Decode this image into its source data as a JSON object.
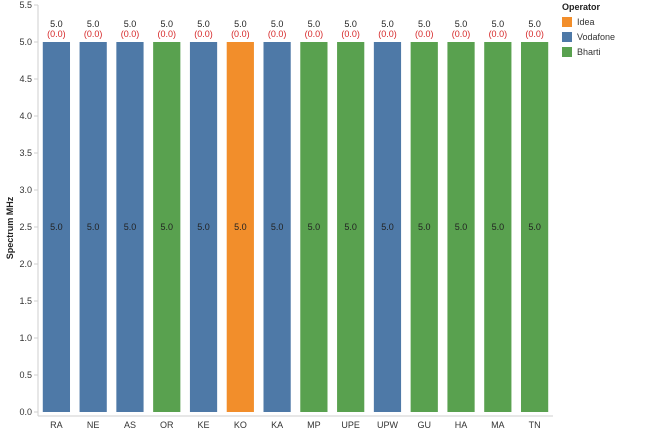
{
  "chart_data": {
    "type": "bar",
    "ylabel": "Spectrum MHz",
    "ylim": [
      0,
      5.5
    ],
    "yticks": [
      0.0,
      0.5,
      1.0,
      1.5,
      2.0,
      2.5,
      3.0,
      3.5,
      4.0,
      4.5,
      5.0,
      5.5
    ],
    "categories": [
      "RA",
      "NE",
      "AS",
      "OR",
      "KE",
      "KO",
      "KA",
      "MP",
      "UPE",
      "UPW",
      "GU",
      "HA",
      "MA",
      "TN"
    ],
    "values": [
      5.0,
      5.0,
      5.0,
      5.0,
      5.0,
      5.0,
      5.0,
      5.0,
      5.0,
      5.0,
      5.0,
      5.0,
      5.0,
      5.0
    ],
    "value_labels": [
      "5.0",
      "5.0",
      "5.0",
      "5.0",
      "5.0",
      "5.0",
      "5.0",
      "5.0",
      "5.0",
      "5.0",
      "5.0",
      "5.0",
      "5.0",
      "5.0"
    ],
    "change_labels": [
      "(0.0)",
      "(0.0)",
      "(0.0)",
      "(0.0)",
      "(0.0)",
      "(0.0)",
      "(0.0)",
      "(0.0)",
      "(0.0)",
      "(0.0)",
      "(0.0)",
      "(0.0)",
      "(0.0)",
      "(0.0)"
    ],
    "operators": [
      "Vodafone",
      "Vodafone",
      "Vodafone",
      "Bharti",
      "Vodafone",
      "Idea",
      "Vodafone",
      "Bharti",
      "Bharti",
      "Vodafone",
      "Bharti",
      "Bharti",
      "Bharti",
      "Bharti"
    ],
    "legend": {
      "title": "Operator",
      "placement": "top-right",
      "items": [
        {
          "name": "Idea",
          "color": "#f28e2b"
        },
        {
          "name": "Vodafone",
          "color": "#4e79a7"
        },
        {
          "name": "Bharti",
          "color": "#59a14f"
        }
      ]
    },
    "grid": false
  }
}
